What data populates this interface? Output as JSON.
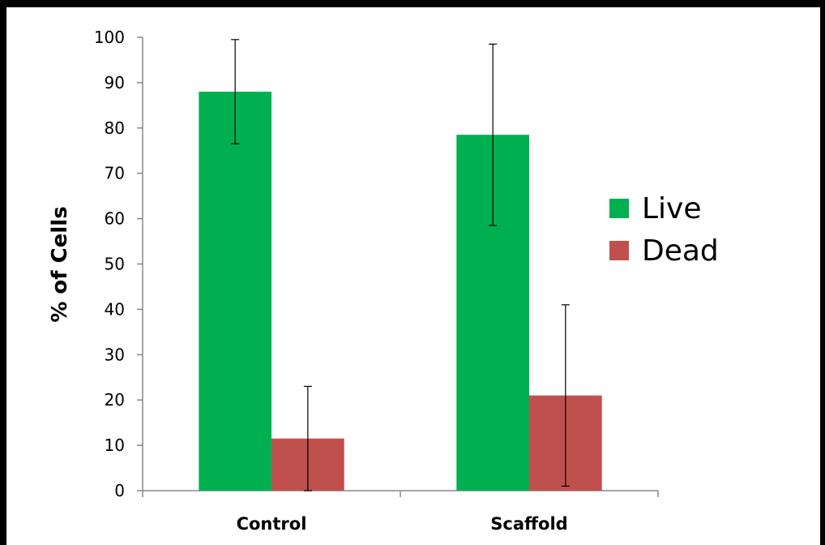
{
  "chart_data": {
    "type": "bar",
    "categories": [
      "Control",
      "Scaffold"
    ],
    "series": [
      {
        "name": "Live",
        "values": [
          88,
          78.5
        ],
        "errors": [
          11.5,
          20
        ],
        "color": "#00b050"
      },
      {
        "name": "Dead",
        "values": [
          11.5,
          21
        ],
        "errors": [
          11.5,
          20
        ],
        "color": "#c0504d"
      }
    ],
    "title": "",
    "xlabel": "",
    "ylabel": "% of Cells",
    "ylim": [
      0,
      100
    ],
    "yticks": [
      0,
      10,
      20,
      30,
      40,
      50,
      60,
      70,
      80,
      90,
      100
    ],
    "ytick_labels": [
      "0",
      "10",
      "20",
      "30",
      "40",
      "50",
      "60",
      "70",
      "80",
      "90",
      "100"
    ],
    "grid": false,
    "legend_position": "right"
  }
}
